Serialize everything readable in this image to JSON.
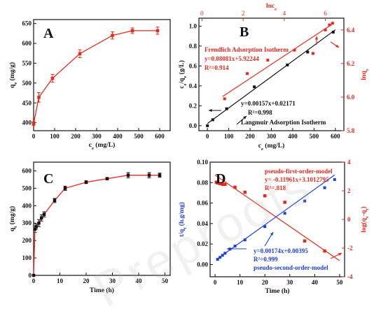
{
  "chart_data": [
    {
      "id": "A",
      "type": "line",
      "panel_letter": "A",
      "xlabel": "c_e (mg/L)",
      "ylabel": "q_e (mg/g)",
      "xlim": [
        0,
        650
      ],
      "ylim": [
        380,
        660
      ],
      "xticks": [
        0,
        100,
        200,
        300,
        400,
        500,
        600
      ],
      "yticks": [
        400,
        450,
        500,
        550,
        600,
        650
      ],
      "series": [
        {
          "x": [
            0,
            25,
            90,
            220,
            375,
            470,
            590
          ],
          "y": [
            398,
            464,
            512,
            574,
            620,
            632,
            632
          ],
          "err": [
            5,
            12,
            10,
            10,
            9,
            7,
            9
          ]
        }
      ]
    },
    {
      "id": "B",
      "type": "scatter",
      "panel_letter": "B",
      "xlabel": "c_e (mg/L)",
      "ylabel": "c_e/q_e (g/L)",
      "x2label": "lnc_e",
      "y2label": "lnq_e",
      "xlim": [
        -40,
        640
      ],
      "ylim": [
        -0.05,
        1.08
      ],
      "x2lim": [
        -0.15,
        6.9
      ],
      "y2lim": [
        5.8,
        6.47
      ],
      "xticks": [
        0,
        100,
        200,
        300,
        400,
        500,
        600
      ],
      "yticks": [
        0.0,
        0.2,
        0.4,
        0.6,
        0.8,
        1.0
      ],
      "x2ticks": [
        0,
        2,
        4,
        6
      ],
      "y2ticks": [
        5.8,
        6.0,
        6.2,
        6.4
      ],
      "langmuir_points": {
        "x": [
          0,
          25,
          90,
          220,
          375,
          470,
          590
        ],
        "y": [
          0.0,
          0.06,
          0.17,
          0.39,
          0.61,
          0.74,
          0.94
        ]
      },
      "langmuir_fit": {
        "slope": 0.00157,
        "intercept": 0.02171
      },
      "freundlich_points": {
        "x": [
          1.1,
          2.2,
          3.2,
          4.5,
          5.4,
          6.0,
          6.2,
          6.35
        ],
        "y": [
          5.99,
          6.14,
          6.22,
          6.28,
          6.26,
          6.4,
          6.43,
          6.44
        ]
      },
      "freundlich_fit": {
        "slope": 0.08081,
        "intercept": 5.92244
      },
      "annotations": {
        "freundlich_title": "Frendlich Adsorption Isotherm",
        "freundlich_eq": "y=0.08081x+5.92244",
        "freundlich_r2": "R²=0.914",
        "langmuir_eq": "y=0.00157x+0.02171",
        "langmuir_r2": "R²=0.998",
        "langmuir_title": "Langmuir Adsorption Isotherm"
      }
    },
    {
      "id": "C",
      "type": "line",
      "panel_letter": "C",
      "xlabel": "Time (h)",
      "ylabel": "q_t (mg/g)",
      "xlim": [
        0,
        52
      ],
      "ylim": [
        0,
        650
      ],
      "xticks": [
        0,
        10,
        20,
        30,
        40,
        50
      ],
      "yticks": [
        0,
        100,
        200,
        300,
        400,
        500,
        600
      ],
      "series": [
        {
          "x": [
            0,
            0.5,
            1,
            2,
            3,
            4,
            8,
            12,
            20,
            28,
            36,
            44,
            48
          ],
          "y": [
            0,
            265,
            280,
            300,
            330,
            350,
            430,
            500,
            535,
            555,
            575,
            575,
            575
          ],
          "err": [
            0,
            18,
            15,
            20,
            18,
            15,
            12,
            12,
            8,
            7,
            15,
            15,
            12
          ]
        }
      ]
    },
    {
      "id": "D",
      "type": "scatter",
      "panel_letter": "D",
      "xlabel": "Time (h)",
      "ylabel": "t/q_t (h.g/mg)",
      "y2label": "log(q_e-q_t)",
      "xlim": [
        -2,
        52
      ],
      "ylim": [
        -0.012,
        0.1
      ],
      "y2lim": [
        -4,
        4
      ],
      "xticks": [
        0,
        10,
        20,
        30,
        40,
        50
      ],
      "yticks": [
        0.0,
        0.02,
        0.04,
        0.06,
        0.08,
        0.1
      ],
      "y2ticks": [
        -4,
        -2,
        0,
        2,
        4
      ],
      "pso_points": {
        "x": [
          1,
          2,
          3,
          4,
          6,
          8,
          12,
          20,
          28,
          36,
          44,
          48
        ],
        "y": [
          0.005,
          0.007,
          0.009,
          0.011,
          0.015,
          0.018,
          0.024,
          0.037,
          0.05,
          0.062,
          0.075,
          0.083
        ]
      },
      "pso_fit": {
        "slope": 0.00174,
        "intercept": 0.00395
      },
      "pfo_points": {
        "x": [
          0.5,
          1,
          2,
          3,
          4,
          8,
          12,
          20,
          28,
          36,
          44
        ],
        "y": [
          2.6,
          2.55,
          2.5,
          2.45,
          2.45,
          2.25,
          1.9,
          1.65,
          1.2,
          -1.5,
          -2.2
        ]
      },
      "pfo_fit": {
        "slope": -0.11961,
        "intercept": 3.1012795
      },
      "annotations": {
        "pfo_title": "pseudo-first-order-model",
        "pfo_eq": "y= -0.11961x+3.1012795",
        "pfo_r2": "R²=.818",
        "pso_eq": "y=0.00174x+0.00395",
        "pso_r2": "R²=0.999",
        "pso_title": "pseudo-second-order-model"
      }
    }
  ],
  "colors": {
    "red": "#e8281e",
    "blue": "#1f3fd6",
    "black": "#111111"
  },
  "watermark_text": "Preproofs"
}
